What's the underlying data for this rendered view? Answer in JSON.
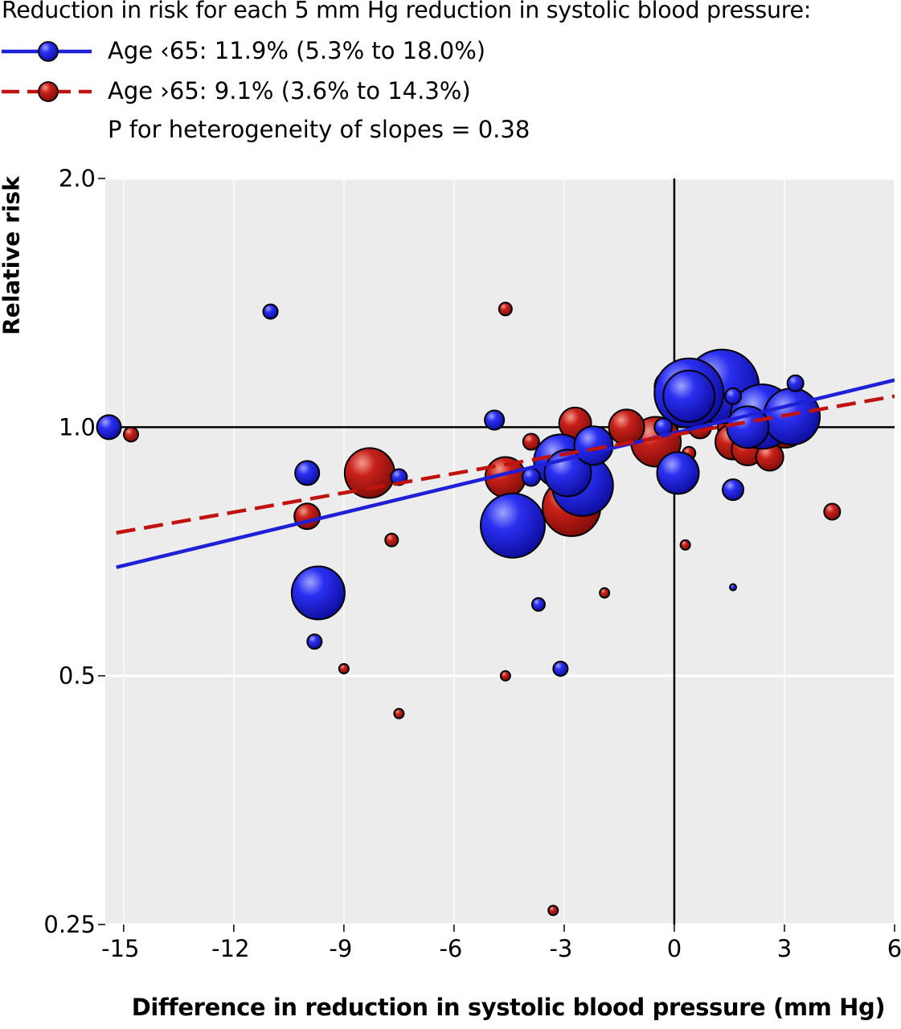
{
  "legend": {
    "title": "Reduction in risk for each 5 mm Hg reduction in systolic blood pressure:",
    "under65": "Age  65: 11.9% (5.3% to 18.0%)",
    "over65": "Age  65: 9.1% (3.6% to 14.3%)",
    "under65_label": "Age ‹65: 11.9% (5.3% to 18.0%)",
    "over65_label": "Age ›65: 9.1% (3.6% to 14.3%)",
    "heterogeneity": "P for heterogeneity of slopes = 0.38"
  },
  "chart_data": {
    "type": "scatter",
    "xlabel": "Difference in reduction in systolic blood pressure (mm Hg)",
    "ylabel": "Relative risk",
    "xlim": [
      -15.5,
      6
    ],
    "ylim": [
      0.25,
      2.0
    ],
    "y_scale": "log",
    "x_ticks": [
      "-15",
      "-12",
      "-9",
      "-6",
      "-3",
      "0",
      "3",
      "6"
    ],
    "x_tick_values": [
      -15,
      -12,
      -9,
      -6,
      -3,
      0,
      3,
      6
    ],
    "y_ticks": [
      "0.25",
      "0.5",
      "1.0",
      "2.0"
    ],
    "y_tick_values": [
      0.25,
      0.5,
      1.0,
      2.0
    ],
    "colors": {
      "under65": "#1f1fd6",
      "over65": "#c0130f",
      "panel": "#ececec"
    },
    "series": [
      {
        "name": "Age ‹65",
        "color": "#1f1fd6",
        "points": [
          [
            -15.4,
            1.0,
            15
          ],
          [
            -11.0,
            1.38,
            9
          ],
          [
            -10.0,
            0.88,
            15
          ],
          [
            -9.8,
            0.55,
            9
          ],
          [
            -9.7,
            0.63,
            33
          ],
          [
            -7.5,
            0.87,
            10
          ],
          [
            -4.9,
            1.02,
            12
          ],
          [
            -4.4,
            0.76,
            40
          ],
          [
            -3.9,
            0.87,
            11
          ],
          [
            -3.7,
            0.61,
            8
          ],
          [
            -3.1,
            0.51,
            9
          ],
          [
            -3.1,
            0.91,
            33
          ],
          [
            -2.9,
            0.88,
            29
          ],
          [
            -2.5,
            0.85,
            38
          ],
          [
            -2.2,
            0.95,
            24
          ],
          [
            -0.3,
            1.0,
            11
          ],
          [
            0.1,
            0.88,
            26
          ],
          [
            0.4,
            1.1,
            43
          ],
          [
            0.4,
            1.09,
            32
          ],
          [
            1.3,
            1.12,
            46
          ],
          [
            1.6,
            1.09,
            10
          ],
          [
            1.6,
            0.84,
            13
          ],
          [
            2.0,
            1.0,
            26
          ],
          [
            2.4,
            1.03,
            40
          ],
          [
            3.2,
            1.03,
            35
          ],
          [
            3.3,
            1.13,
            10
          ],
          [
            1.6,
            0.64,
            4
          ]
        ],
        "fit": {
          "x": [
            -15.5,
            6.0
          ],
          "y": [
            0.67,
            1.14
          ]
        }
      },
      {
        "name": "Age ›65",
        "color": "#c0130f",
        "points": [
          [
            -14.8,
            0.98,
            9
          ],
          [
            -10.0,
            0.78,
            16
          ],
          [
            -9.0,
            0.51,
            6
          ],
          [
            -8.3,
            0.88,
            31
          ],
          [
            -7.7,
            0.73,
            8
          ],
          [
            -7.5,
            0.45,
            6
          ],
          [
            -4.6,
            1.39,
            8
          ],
          [
            -4.6,
            0.87,
            25
          ],
          [
            -4.6,
            0.5,
            6
          ],
          [
            -3.9,
            0.96,
            10
          ],
          [
            -3.3,
            0.26,
            6
          ],
          [
            -2.7,
            1.01,
            20
          ],
          [
            -2.8,
            0.8,
            36
          ],
          [
            -1.9,
            0.63,
            6
          ],
          [
            -1.3,
            1.0,
            22
          ],
          [
            -0.5,
            0.96,
            31
          ],
          [
            -0.1,
            1.12,
            20
          ],
          [
            0.4,
            0.93,
            8
          ],
          [
            0.3,
            0.72,
            6
          ],
          [
            0.7,
            1.0,
            14
          ],
          [
            1.6,
            0.96,
            22
          ],
          [
            1.8,
            1.0,
            28
          ],
          [
            2.0,
            0.94,
            20
          ],
          [
            2.6,
            0.92,
            17
          ],
          [
            2.7,
            1.05,
            26
          ],
          [
            3.0,
            1.01,
            30
          ],
          [
            4.3,
            0.79,
            10
          ]
        ],
        "fit": {
          "x": [
            -15.5,
            6.0
          ],
          "y": [
            0.74,
            1.09
          ]
        }
      }
    ]
  }
}
